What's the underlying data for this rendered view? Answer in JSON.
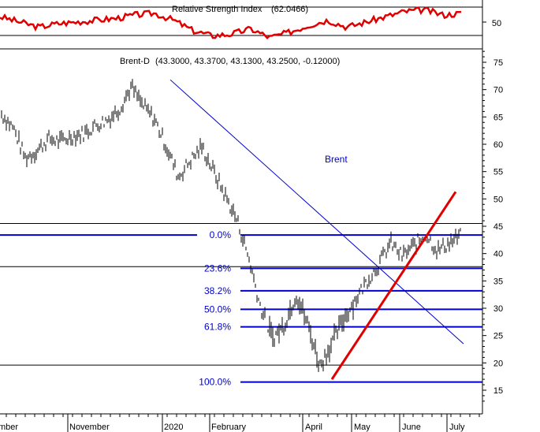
{
  "chart_data": {
    "type": "line",
    "rsi_panel": {
      "title": "Relative Strength Index",
      "value_label": "(62.0466)",
      "y_ticks": [
        50
      ]
    },
    "price_panel": {
      "header_label": "Brent-D",
      "header_values": "(43.3000, 43.3700, 43.1300, 43.2500, -0.12000)",
      "series_name": "Brent",
      "y_ticks": [
        15,
        20,
        25,
        30,
        35,
        40,
        45,
        50,
        55,
        60,
        65,
        70,
        75
      ],
      "ylim": [
        12,
        77
      ],
      "x_ticks": [
        "mber",
        "November",
        "2020",
        "February",
        "April",
        "May",
        "June",
        "July"
      ],
      "fib_levels": [
        {
          "label": "0.0%",
          "value": 43.4
        },
        {
          "label": "23.6%",
          "value": 37.3
        },
        {
          "label": "38.2%",
          "value": 33.2
        },
        {
          "label": "50.0%",
          "value": 29.8
        },
        {
          "label": "61.8%",
          "value": 26.6
        },
        {
          "label": "100.0%",
          "value": 16.5
        }
      ],
      "horizontal_refs": [
        45.5,
        37.6,
        19.6
      ],
      "downtrend_line": {
        "from_value": 71.8,
        "to_value": 23.5
      },
      "uptrend_line": {
        "from_value": 17.0,
        "to_value": 51.3
      },
      "price_path": [
        65.5,
        63.0,
        57.5,
        58.8,
        61.0,
        60.5,
        61.5,
        62.0,
        63.5,
        64.5,
        66.5,
        70.5,
        67.0,
        64.5,
        59.5,
        54.0,
        57.0,
        59.5,
        55.0,
        50.5,
        46.0,
        39.0,
        30.0,
        24.5,
        27.0,
        32.5,
        27.0,
        19.5,
        23.5,
        28.0,
        31.5,
        35.0,
        38.0,
        42.0,
        39.5,
        41.5,
        43.5,
        40.5,
        42.0,
        43.3
      ]
    }
  }
}
